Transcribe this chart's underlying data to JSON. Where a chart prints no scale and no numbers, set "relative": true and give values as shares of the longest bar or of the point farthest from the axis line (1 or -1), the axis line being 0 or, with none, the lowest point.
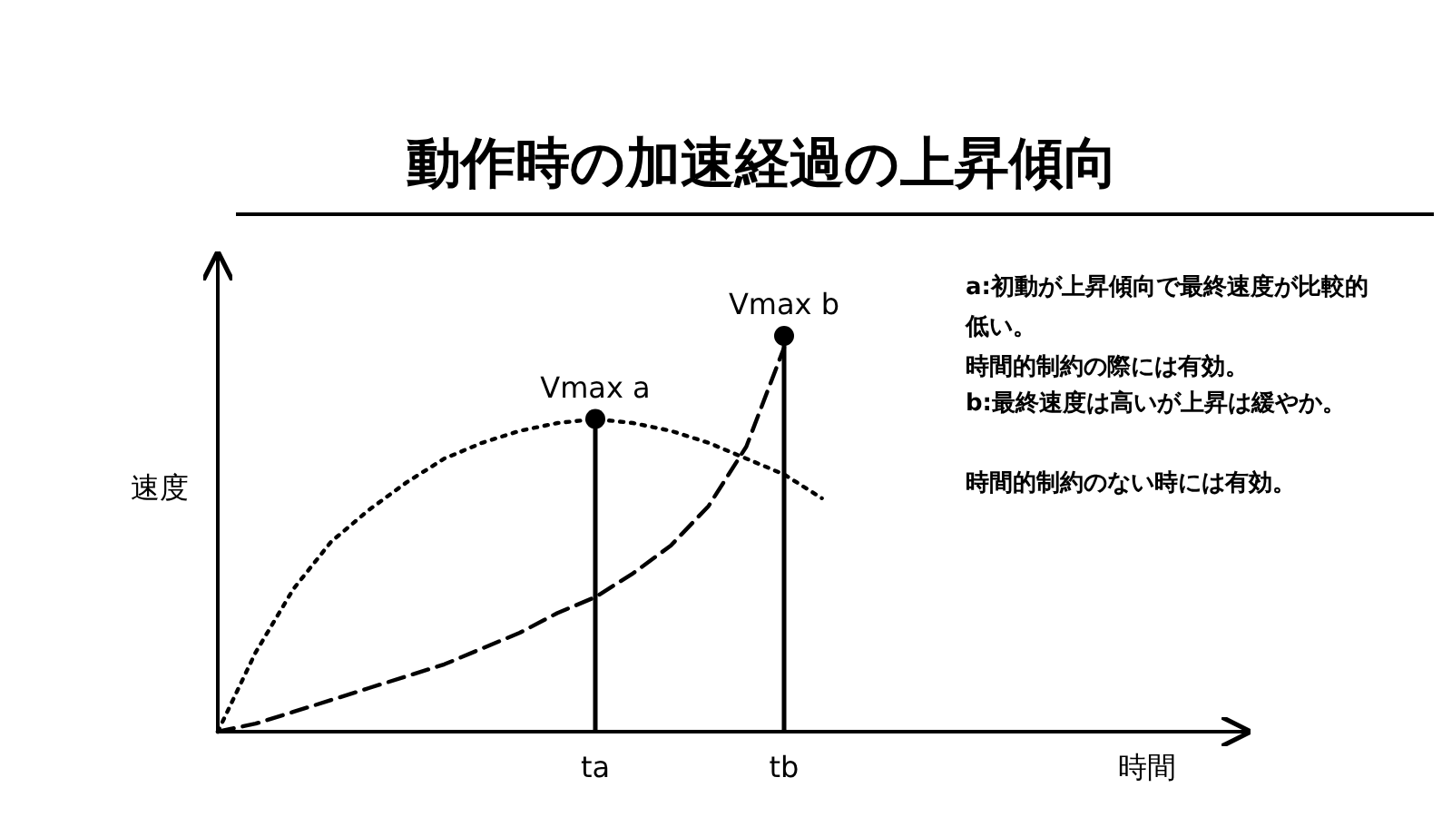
{
  "chart_data": {
    "type": "line",
    "title": "動作時の加速経過の上昇傾向",
    "xlabel": "時間",
    "ylabel": "速度",
    "relative": true,
    "categories": [
      null,
      null,
      null,
      null,
      null,
      null,
      null,
      null,
      null,
      null,
      "ta",
      null,
      null,
      null,
      null,
      "tb",
      null,
      null,
      null,
      null,
      null,
      null,
      null,
      null,
      null,
      null,
      null,
      null
    ],
    "series": [
      {
        "type": "line",
        "line_style": "dotted",
        "color": "#000000",
        "values": [
          0,
          0.2,
          0.36,
          0.48,
          0.56,
          0.63,
          0.69,
          0.73,
          0.76,
          0.78,
          0.79,
          0.78,
          0.76,
          0.73,
          0.69,
          0.65,
          0.59,
          null,
          null,
          null,
          null,
          null,
          null,
          null,
          null,
          null,
          null,
          null
        ]
      },
      {
        "type": "line",
        "line_style": "dashed",
        "color": "#000000",
        "values": [
          0,
          0.02,
          0.05,
          0.08,
          0.11,
          0.14,
          0.17,
          0.21,
          0.25,
          0.3,
          0.34,
          0.4,
          0.47,
          0.57,
          0.72,
          0.97,
          null,
          null,
          null,
          null,
          null,
          null,
          null,
          null,
          null,
          null,
          null,
          null
        ]
      },
      {
        "type": "lollipop",
        "color": "#000000",
        "values": [
          null,
          null,
          null,
          null,
          null,
          null,
          null,
          null,
          null,
          null,
          0.79,
          null,
          null,
          null,
          null,
          1,
          null,
          null,
          null,
          null,
          null,
          null,
          null,
          null,
          null,
          null,
          null,
          null
        ]
      }
    ],
    "annotations": [
      {
        "text": "Vmax a",
        "x": "ta",
        "y": 0.79
      },
      {
        "text": "Vmax b",
        "x": "tb",
        "y": 1
      },
      "a:初動が上昇傾向で最終速度が比較的低い。",
      "時間的制約の際には有効。",
      "b:最終速度は高いが上昇は緩やか。",
      "時間的制約のない時には有効。"
    ]
  }
}
